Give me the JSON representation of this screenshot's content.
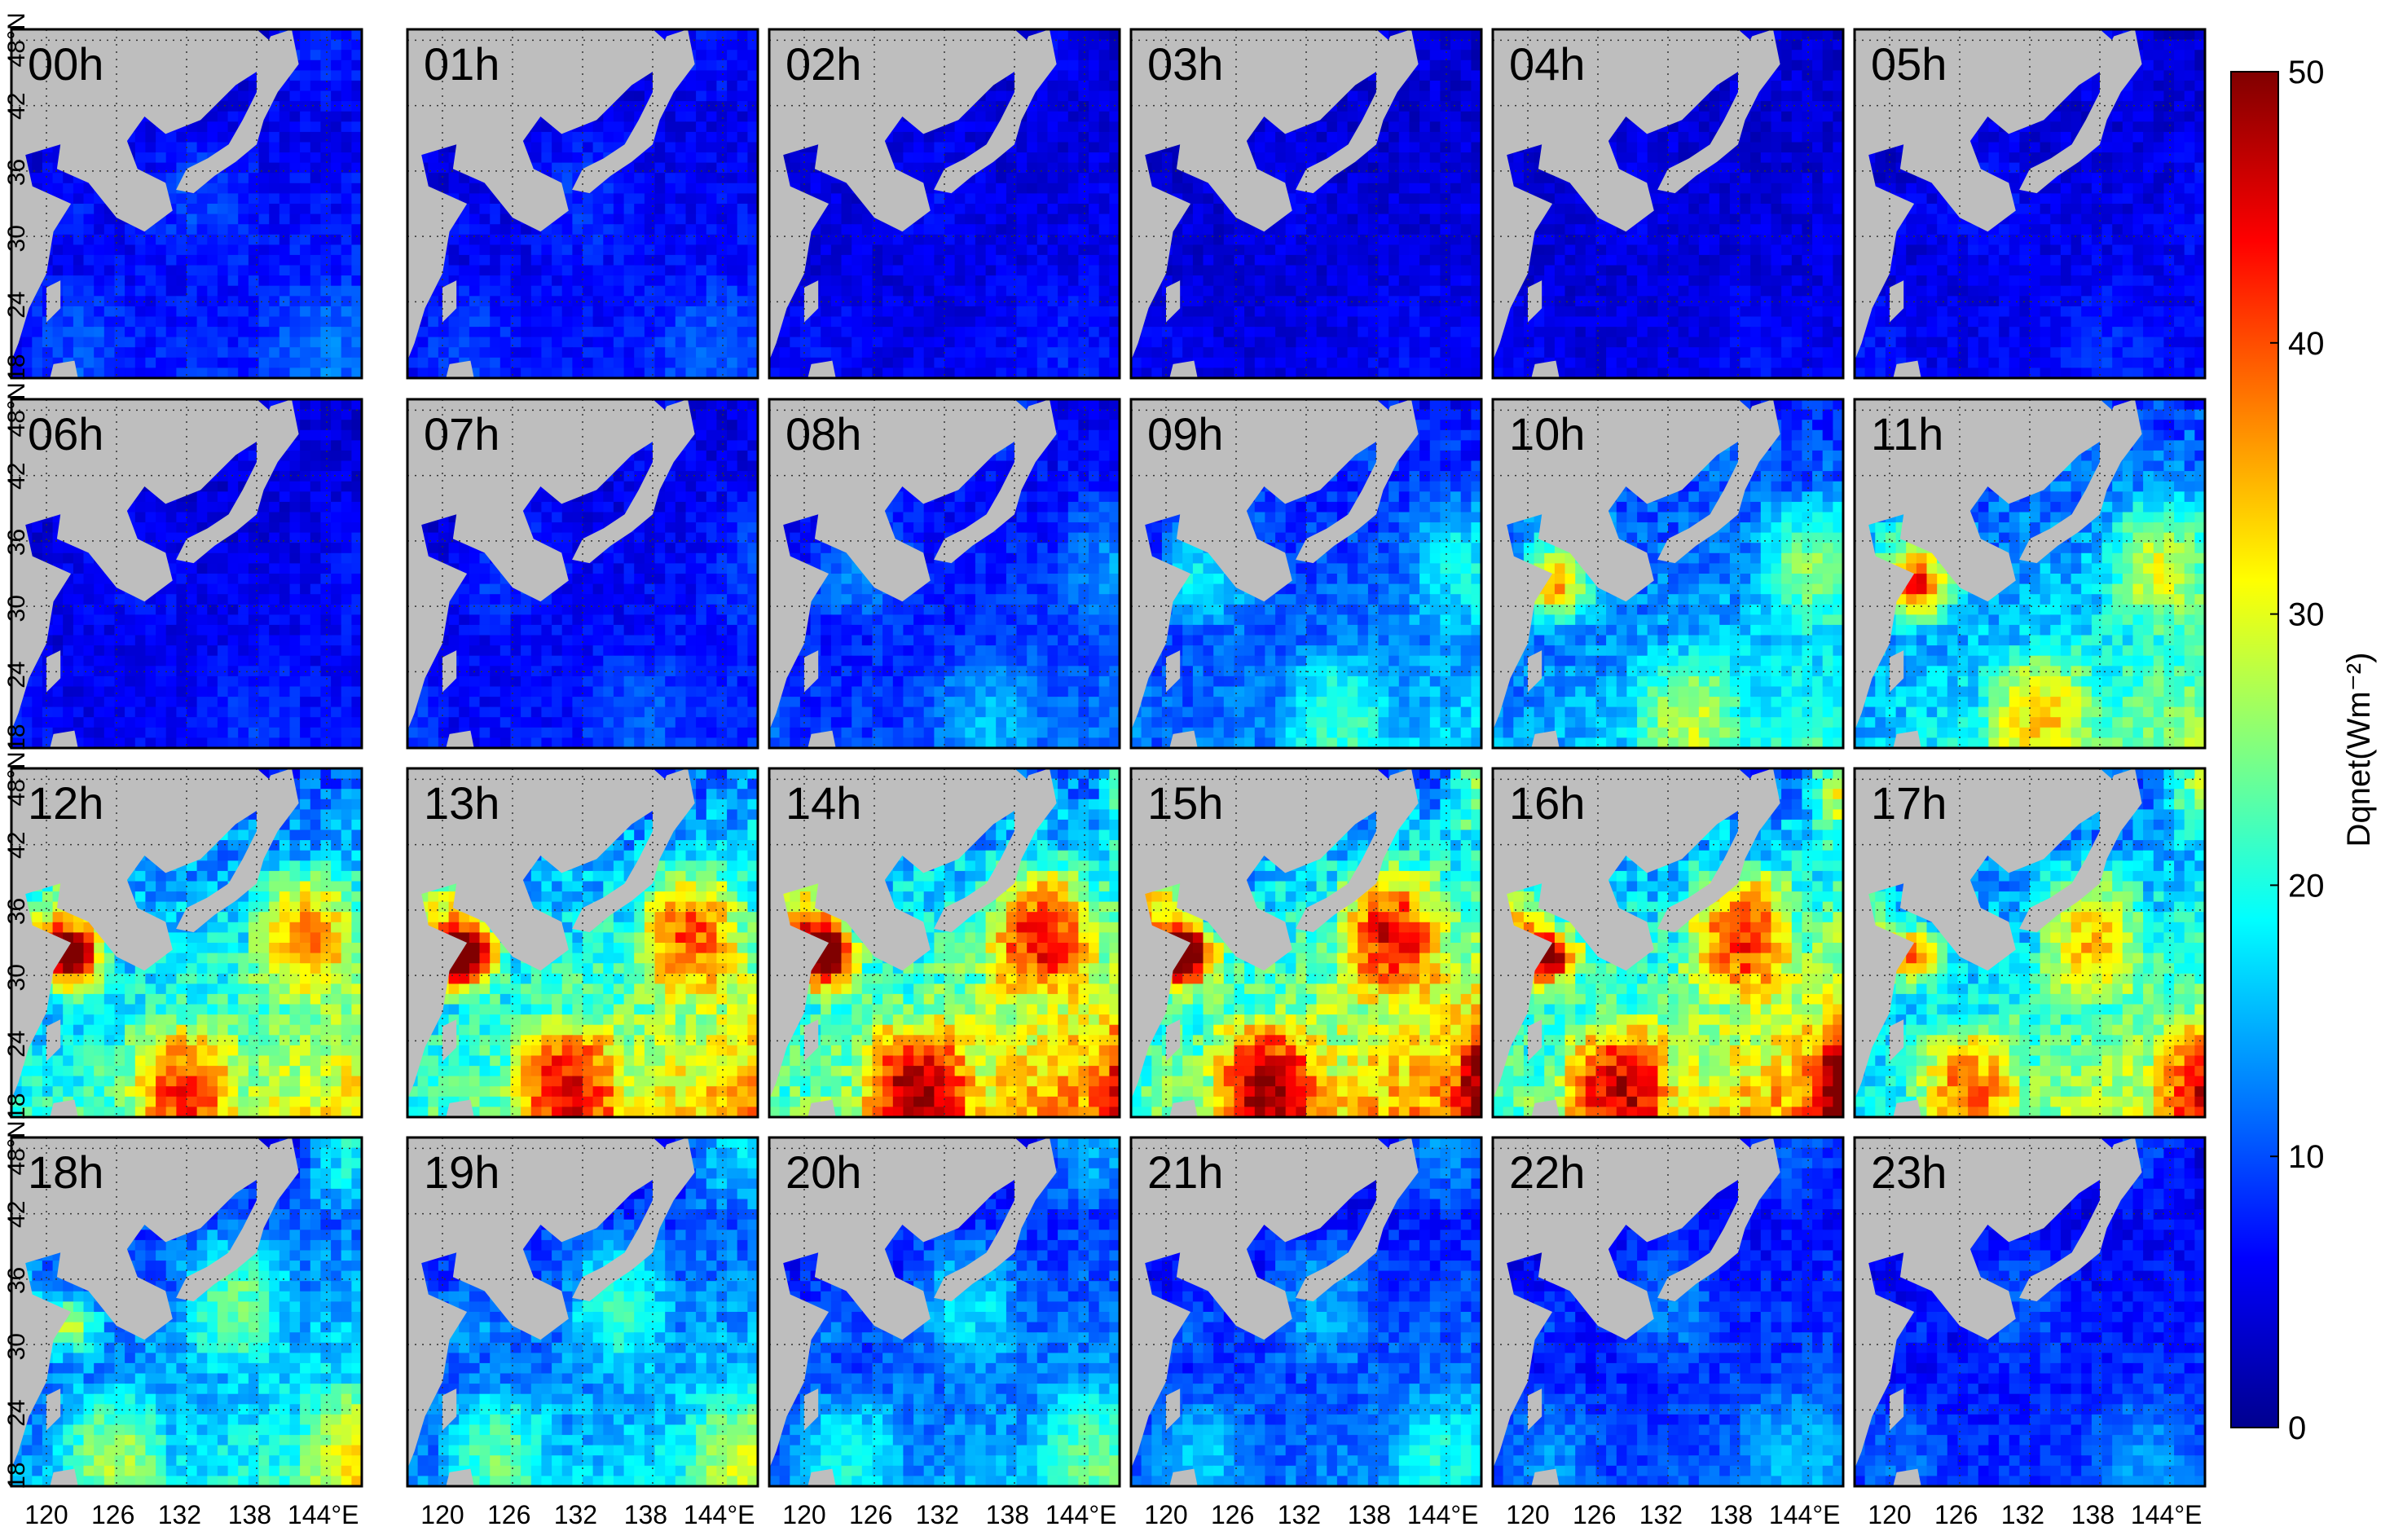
{
  "chart_data": {
    "type": "heatmap",
    "grid": "dotted",
    "colormap": "jet",
    "panels": {
      "labels": [
        "00h",
        "01h",
        "02h",
        "03h",
        "04h",
        "05h",
        "06h",
        "07h",
        "08h",
        "09h",
        "10h",
        "11h",
        "12h",
        "13h",
        "14h",
        "15h",
        "16h",
        "17h",
        "18h",
        "19h",
        "20h",
        "21h",
        "22h",
        "23h"
      ],
      "intensity": [
        0.15,
        0.13,
        0.08,
        0.06,
        0.06,
        0.09,
        0.1,
        0.14,
        0.22,
        0.34,
        0.46,
        0.56,
        0.72,
        0.8,
        0.88,
        0.9,
        0.86,
        0.7,
        0.48,
        0.42,
        0.34,
        0.28,
        0.22,
        0.18
      ],
      "rows": 4,
      "cols": 6
    },
    "x_ticks": [
      "120",
      "126",
      "132",
      "138",
      "144°E"
    ],
    "y_ticks": [
      "48°N",
      "42",
      "36",
      "30",
      "24",
      "18"
    ],
    "xlim": [
      117,
      147
    ],
    "ylim": [
      17,
      49
    ],
    "colorbar": {
      "label": "Dqnet(Wm⁻²)",
      "ticks": [
        "0",
        "10",
        "20",
        "30",
        "40",
        "50"
      ],
      "range": [
        0,
        50
      ],
      "colors": [
        "#00008f",
        "#0000ff",
        "#0080ff",
        "#00ffff",
        "#80ff80",
        "#ffff00",
        "#ff8000",
        "#ff0000",
        "#800000"
      ]
    },
    "land_color": "#bebebe"
  }
}
